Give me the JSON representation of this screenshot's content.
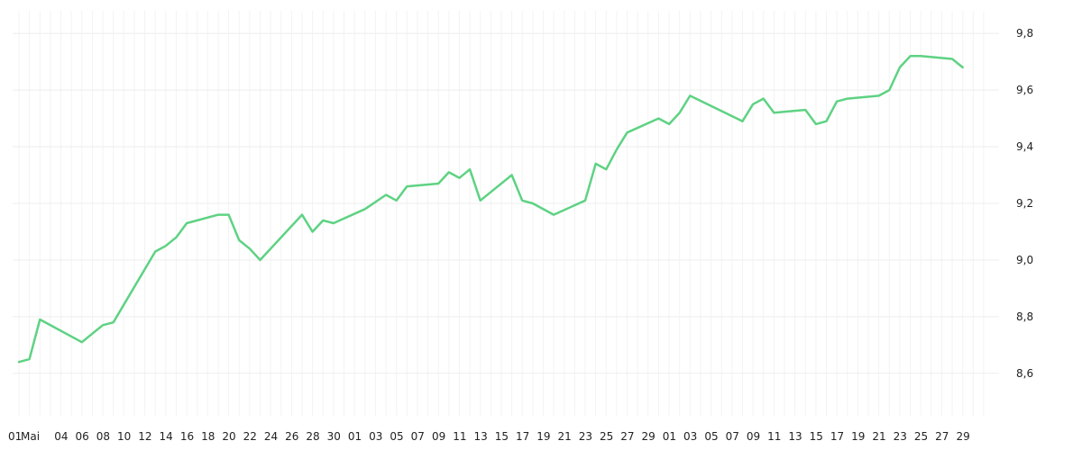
{
  "chart_data": {
    "type": "line",
    "title": "",
    "xlabel": "",
    "ylabel": "",
    "grid": true,
    "legend": "none",
    "y_axis_side": "right",
    "ylim": [
      8.45,
      9.88
    ],
    "y_ticks": [
      "8,6",
      "8,8",
      "9,0",
      "9,2",
      "9,4",
      "9,6",
      "9,8"
    ],
    "y_tick_values": [
      8.6,
      8.8,
      9.0,
      9.2,
      9.4,
      9.6,
      9.8
    ],
    "x_tick_labels": [
      "01",
      "Mai",
      "04",
      "06",
      "08",
      "10",
      "12",
      "14",
      "16",
      "18",
      "20",
      "22",
      "24",
      "26",
      "28",
      "30",
      "01",
      "03",
      "05",
      "07",
      "09",
      "11",
      "13",
      "15",
      "17",
      "19",
      "21",
      "23",
      "25",
      "27",
      "29",
      "01",
      "03",
      "05",
      "07",
      "09",
      "11",
      "13",
      "15",
      "17",
      "19",
      "21",
      "23",
      "25",
      "27",
      "29"
    ],
    "color": "#5ed283",
    "series": [
      {
        "name": "",
        "values": [
          [
            1,
            8.64
          ],
          [
            2,
            8.65
          ],
          [
            3,
            8.79
          ],
          [
            7,
            8.71
          ],
          [
            8,
            8.74
          ],
          [
            9,
            8.77
          ],
          [
            10,
            8.78
          ],
          [
            14,
            9.03
          ],
          [
            15,
            9.05
          ],
          [
            16,
            9.08
          ],
          [
            17,
            9.13
          ],
          [
            20,
            9.16
          ],
          [
            21,
            9.16
          ],
          [
            22,
            9.07
          ],
          [
            23,
            9.04
          ],
          [
            24,
            9.0
          ],
          [
            28,
            9.16
          ],
          [
            29,
            9.1
          ],
          [
            30,
            9.14
          ],
          [
            31,
            9.13
          ],
          [
            34,
            9.18
          ],
          [
            36,
            9.23
          ],
          [
            37,
            9.21
          ],
          [
            38,
            9.26
          ],
          [
            41,
            9.27
          ],
          [
            42,
            9.31
          ],
          [
            43,
            9.29
          ],
          [
            44,
            9.32
          ],
          [
            45,
            9.21
          ],
          [
            48,
            9.3
          ],
          [
            49,
            9.21
          ],
          [
            50,
            9.2
          ],
          [
            52,
            9.16
          ],
          [
            55,
            9.21
          ],
          [
            56,
            9.34
          ],
          [
            57,
            9.32
          ],
          [
            58,
            9.39
          ],
          [
            59,
            9.45
          ],
          [
            62,
            9.5
          ],
          [
            63,
            9.48
          ],
          [
            64,
            9.52
          ],
          [
            65,
            9.58
          ],
          [
            70,
            9.49
          ],
          [
            71,
            9.55
          ],
          [
            72,
            9.57
          ],
          [
            73,
            9.52
          ],
          [
            76,
            9.53
          ],
          [
            77,
            9.48
          ],
          [
            78,
            9.49
          ],
          [
            79,
            9.56
          ],
          [
            80,
            9.57
          ],
          [
            83,
            9.58
          ],
          [
            84,
            9.6
          ],
          [
            85,
            9.68
          ],
          [
            86,
            9.72
          ],
          [
            87,
            9.72
          ],
          [
            90,
            9.71
          ],
          [
            91,
            9.68
          ]
        ]
      }
    ]
  }
}
